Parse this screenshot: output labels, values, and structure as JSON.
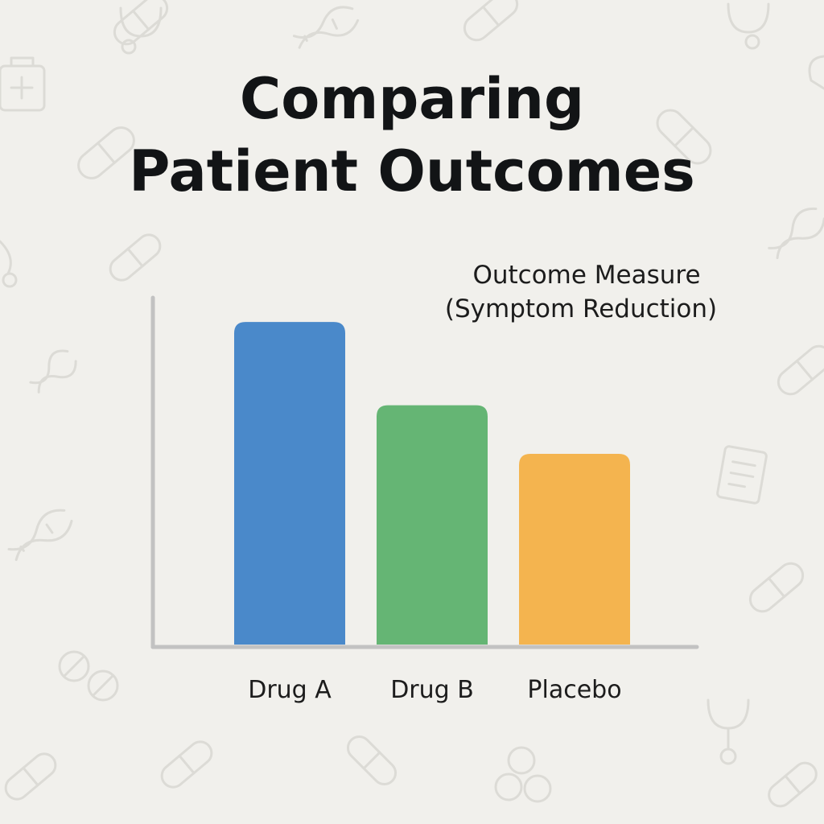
{
  "chart_data": {
    "type": "bar",
    "title_lines": [
      "Comparing",
      "Patient Outcomes"
    ],
    "ylabel_lines": [
      "Outcome Measure",
      "(Symptom Reduction)"
    ],
    "xlabel": "",
    "categories": [
      "Drug A",
      "Drug B",
      "Placebo"
    ],
    "values": [
      93,
      69,
      55
    ],
    "ylim": [
      0,
      100
    ],
    "colors": [
      "#4a89ca",
      "#65b574",
      "#f4b44f"
    ],
    "grid": false,
    "legend": "none"
  },
  "background": {
    "color": "#f1f0ec",
    "icon_color": "#dcdbd6",
    "icons": [
      "pill-icon",
      "stethoscope-icon",
      "dna-icon",
      "medical-bag-icon",
      "clipboard-icon",
      "tablet-icon"
    ]
  }
}
